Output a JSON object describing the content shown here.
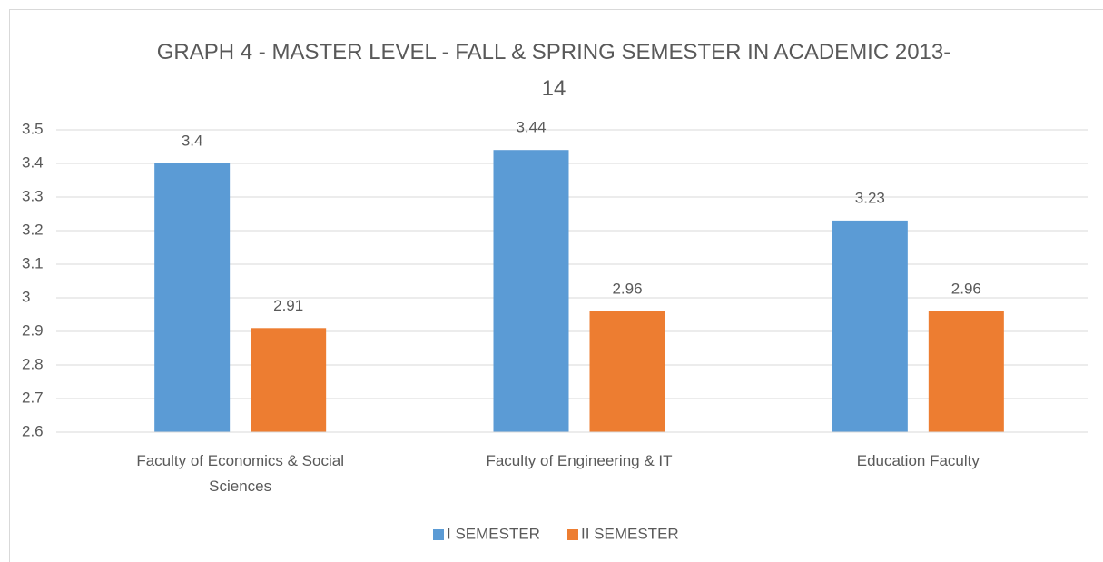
{
  "chart_data": {
    "type": "bar",
    "title": "GRAPH 4 - MASTER LEVEL - FALL & SPRING SEMESTER IN ACADEMIC 2013-14",
    "categories": [
      "Faculty of Economics & Social Sciences",
      "Faculty of Engineering & IT",
      "Education Faculty"
    ],
    "series": [
      {
        "name": "I SEMESTER",
        "color": "#5b9bd5",
        "values": [
          3.4,
          3.44,
          3.23
        ]
      },
      {
        "name": "II SEMESTER",
        "color": "#ed7d31",
        "values": [
          2.91,
          2.96,
          2.96
        ]
      }
    ],
    "ylim": [
      2.6,
      3.5
    ],
    "yticks": [
      2.6,
      2.7,
      2.8,
      2.9,
      3,
      3.1,
      3.2,
      3.3,
      3.4,
      3.5
    ],
    "grid": true,
    "legend": "bottom"
  }
}
